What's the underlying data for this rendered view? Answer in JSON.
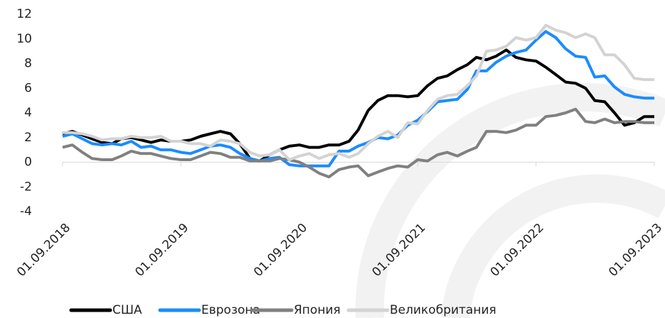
{
  "chart_data": {
    "type": "line",
    "x": [
      "2018-09-01",
      "2018-10-01",
      "2018-11-01",
      "2018-12-01",
      "2019-01-01",
      "2019-02-01",
      "2019-03-01",
      "2019-04-01",
      "2019-05-01",
      "2019-06-01",
      "2019-07-01",
      "2019-08-01",
      "2019-09-01",
      "2019-10-01",
      "2019-11-01",
      "2019-12-01",
      "2020-01-01",
      "2020-02-01",
      "2020-03-01",
      "2020-04-01",
      "2020-05-01",
      "2020-06-01",
      "2020-07-01",
      "2020-08-01",
      "2020-09-01",
      "2020-10-01",
      "2020-11-01",
      "2020-12-01",
      "2021-01-01",
      "2021-02-01",
      "2021-03-01",
      "2021-04-01",
      "2021-05-01",
      "2021-06-01",
      "2021-07-01",
      "2021-08-01",
      "2021-09-01",
      "2021-10-01",
      "2021-11-01",
      "2021-12-01",
      "2022-01-01",
      "2022-02-01",
      "2022-03-01",
      "2022-04-01",
      "2022-05-01",
      "2022-06-01",
      "2022-07-01",
      "2022-08-01",
      "2022-09-01",
      "2022-10-01",
      "2022-11-01",
      "2022-12-01",
      "2023-01-01",
      "2023-02-01",
      "2023-03-01",
      "2023-04-01",
      "2023-05-01",
      "2023-06-01",
      "2023-07-01",
      "2023-08-01",
      "2023-09-01"
    ],
    "series": [
      {
        "name": "США",
        "color": "#000000",
        "values": [
          2.3,
          2.5,
          2.2,
          1.9,
          1.6,
          1.5,
          1.9,
          2.0,
          1.8,
          1.6,
          1.8,
          1.7,
          1.7,
          1.8,
          2.1,
          2.3,
          2.5,
          2.3,
          1.5,
          0.3,
          0.1,
          0.6,
          1.0,
          1.3,
          1.4,
          1.2,
          1.2,
          1.4,
          1.4,
          1.7,
          2.6,
          4.2,
          5.0,
          5.4,
          5.4,
          5.3,
          5.4,
          6.2,
          6.8,
          7.0,
          7.5,
          7.9,
          8.5,
          8.3,
          8.6,
          9.1,
          8.5,
          8.3,
          8.2,
          7.7,
          7.1,
          6.5,
          6.4,
          6.0,
          5.0,
          4.9,
          4.0,
          3.0,
          3.2,
          3.7,
          3.7
        ]
      },
      {
        "name": "Еврозона",
        "color": "#1a8cff",
        "values": [
          2.1,
          2.3,
          1.9,
          1.5,
          1.4,
          1.5,
          1.4,
          1.7,
          1.2,
          1.3,
          1.0,
          1.0,
          0.8,
          0.7,
          1.0,
          1.3,
          1.4,
          1.2,
          0.7,
          0.3,
          0.1,
          0.3,
          0.4,
          -0.2,
          -0.3,
          -0.3,
          -0.3,
          -0.3,
          0.9,
          0.9,
          1.3,
          1.6,
          2.0,
          1.9,
          2.2,
          3.0,
          3.4,
          4.1,
          4.9,
          5.0,
          5.1,
          5.9,
          7.4,
          7.4,
          8.1,
          8.6,
          8.9,
          9.1,
          9.9,
          10.6,
          10.1,
          9.2,
          8.6,
          8.5,
          6.9,
          7.0,
          6.1,
          5.5,
          5.3,
          5.2,
          5.2
        ]
      },
      {
        "name": "Япония",
        "color": "#808080",
        "values": [
          1.2,
          1.4,
          0.8,
          0.3,
          0.2,
          0.2,
          0.5,
          0.9,
          0.7,
          0.7,
          0.5,
          0.3,
          0.2,
          0.2,
          0.5,
          0.8,
          0.7,
          0.4,
          0.4,
          0.1,
          0.1,
          0.1,
          0.3,
          0.2,
          0.0,
          -0.4,
          -0.9,
          -1.2,
          -0.6,
          -0.4,
          -0.3,
          -1.1,
          -0.8,
          -0.5,
          -0.3,
          -0.4,
          0.2,
          0.1,
          0.6,
          0.8,
          0.5,
          0.9,
          1.2,
          2.5,
          2.5,
          2.4,
          2.6,
          3.0,
          3.0,
          3.7,
          3.8,
          4.0,
          4.3,
          3.3,
          3.2,
          3.5,
          3.2,
          3.3,
          3.3,
          3.2,
          3.2
        ]
      },
      {
        "name": "Великобритания",
        "color": "#d3d3d3",
        "values": [
          2.4,
          2.4,
          2.3,
          2.1,
          1.8,
          1.9,
          1.9,
          2.1,
          2.0,
          2.0,
          2.1,
          1.7,
          1.7,
          1.5,
          1.5,
          1.3,
          1.8,
          1.7,
          1.5,
          0.8,
          0.5,
          0.6,
          1.0,
          0.2,
          0.5,
          0.7,
          0.3,
          0.6,
          0.7,
          0.4,
          0.7,
          1.5,
          2.1,
          2.5,
          2.0,
          3.2,
          3.1,
          4.2,
          5.1,
          5.4,
          5.5,
          6.2,
          7.0,
          9.0,
          9.1,
          9.4,
          10.1,
          9.9,
          10.1,
          11.1,
          10.7,
          10.5,
          10.1,
          10.4,
          10.1,
          8.7,
          8.7,
          7.9,
          6.8,
          6.7,
          6.7
        ]
      }
    ],
    "xlim": [
      "2018-09-01",
      "2023-09-01"
    ],
    "xticks": [
      {
        "value": "2018-09-01",
        "label": "01.09.2018"
      },
      {
        "value": "2019-09-01",
        "label": "01.09.2019"
      },
      {
        "value": "2020-09-01",
        "label": "01.09.2020"
      },
      {
        "value": "2021-09-01",
        "label": "01.09.2021"
      },
      {
        "value": "2022-09-01",
        "label": "01.09.2022"
      },
      {
        "value": "2023-09-01",
        "label": "01.09.2023"
      }
    ],
    "ylim": [
      -4,
      12
    ],
    "yticks": [
      -4,
      -2,
      0,
      2,
      4,
      6,
      8,
      10,
      12
    ],
    "legend": "bottom"
  }
}
